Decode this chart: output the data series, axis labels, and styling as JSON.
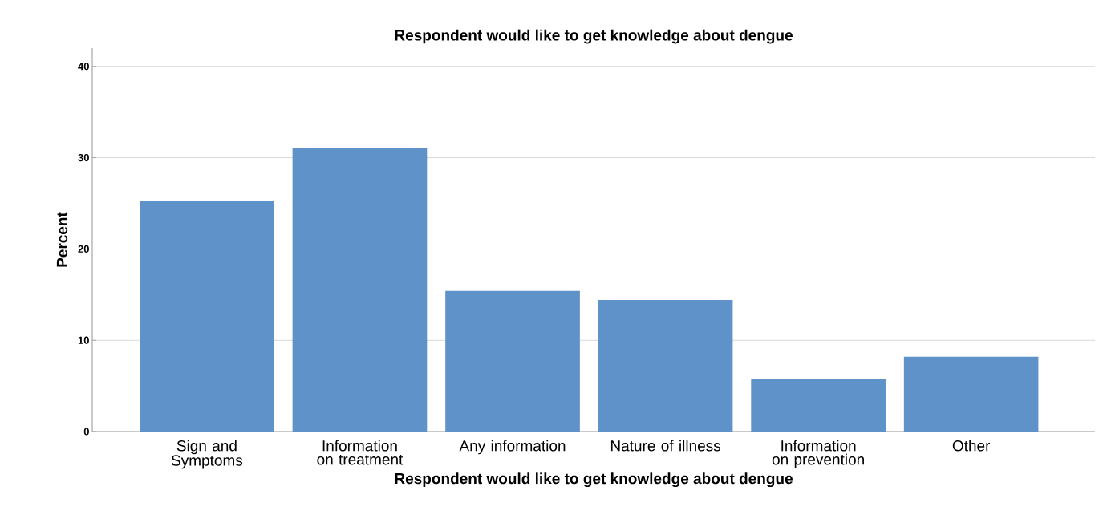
{
  "chart_data": {
    "type": "bar",
    "title": "Respondent would like to get knowledge about dengue",
    "xlabel": "Respondent would like to get knowledge about dengue",
    "ylabel": "Percent",
    "categories": [
      "Sign and Symptoms",
      "Information on treatment",
      "Any information",
      "Nature of illness",
      "Information on prevention",
      "Other"
    ],
    "values": [
      25.3,
      31.1,
      15.4,
      14.4,
      5.8,
      8.2
    ],
    "color": "#5f92c8",
    "ylim": [
      0,
      42
    ],
    "yticks": [
      0,
      10,
      20,
      30,
      40
    ],
    "grid": "y"
  }
}
